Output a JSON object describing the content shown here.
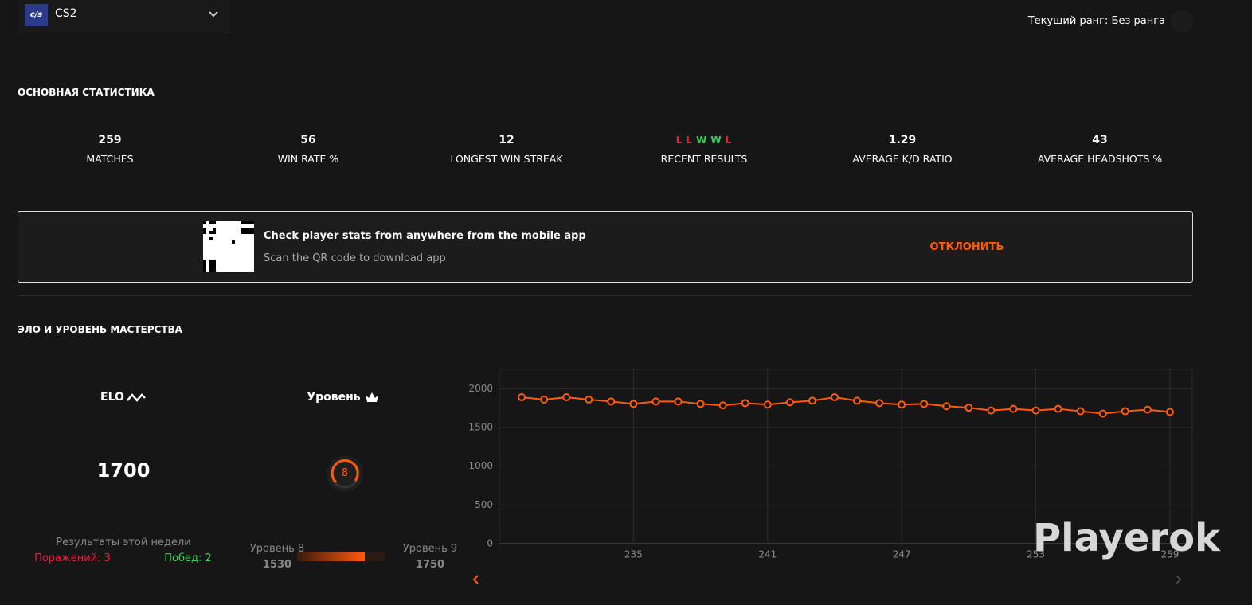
{
  "header": {
    "game": "CS2",
    "rank": "Текущий ранг: Без ранга"
  },
  "main_stats": {
    "title": "ОСНОВНАЯ СТАТИСТИКА",
    "items": [
      {
        "value": 259,
        "label": "MATCHES"
      },
      {
        "value": 56,
        "label": "WIN RATE %"
      },
      {
        "value": 12,
        "label": "LONGEST WIN STREAK"
      },
      {
        "results": [
          "L",
          "L",
          "W",
          "W",
          "L"
        ],
        "label": "RECENT RESULTS"
      },
      {
        "value": 1.29,
        "label": "AVERAGE K/D RATIO"
      },
      {
        "value": 43,
        "label": "AVERAGE HEADSHOTS %"
      }
    ]
  },
  "banner": {
    "title": "Check player stats from anywhere from the mobile app",
    "subtitle": "Scan the QR code to download app",
    "dismiss": "ОТКЛОНИТЬ"
  },
  "elo_section": {
    "title": "ЭЛО И УРОВЕНЬ МАСТЕРСТВА",
    "elo_label": "ELO",
    "elo": 1700,
    "level_label": "Уровень",
    "level": 8,
    "week_title": "Результаты этой недели",
    "losses": "Поражений: 3",
    "wins": "Побед: 2",
    "level_from": "Уровень 8",
    "level_from_elo": 1530,
    "level_to": "Уровень 9",
    "level_to_elo": 1750
  },
  "watermark": "Playerok",
  "chart_data": {
    "type": "line",
    "color": "#ff5a0a",
    "x": [
      230,
      231,
      232,
      233,
      234,
      235,
      236,
      237,
      238,
      239,
      240,
      241,
      242,
      243,
      244,
      245,
      246,
      247,
      248,
      249,
      250,
      251,
      252,
      253,
      254,
      255,
      256,
      257,
      258,
      259
    ],
    "values": [
      1890,
      1860,
      1890,
      1860,
      1835,
      1805,
      1835,
      1835,
      1805,
      1785,
      1815,
      1795,
      1825,
      1845,
      1890,
      1845,
      1815,
      1795,
      1805,
      1775,
      1755,
      1720,
      1740,
      1720,
      1740,
      1710,
      1680,
      1710,
      1730,
      1700
    ],
    "xlim": [
      229,
      260
    ],
    "ylim": [
      0,
      2250
    ],
    "xticks": [
      235,
      241,
      247,
      253,
      259
    ],
    "yticks": [
      0,
      500,
      1000,
      1500,
      2000
    ],
    "grid": true
  }
}
